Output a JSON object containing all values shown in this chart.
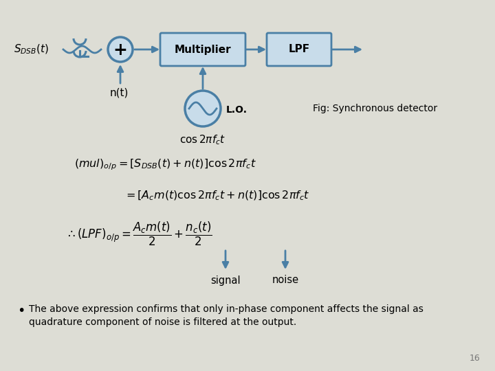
{
  "bg_color": "#ddddd5",
  "block_color": "#4a7fa5",
  "block_face_color": "#c8dcea",
  "arrow_color": "#4a7fa5",
  "page_num": "16",
  "bullet_text_1": "The above expression confirms that only in-phase component affects the signal as",
  "bullet_text_2": "quadrature component of noise is filtered at the output."
}
